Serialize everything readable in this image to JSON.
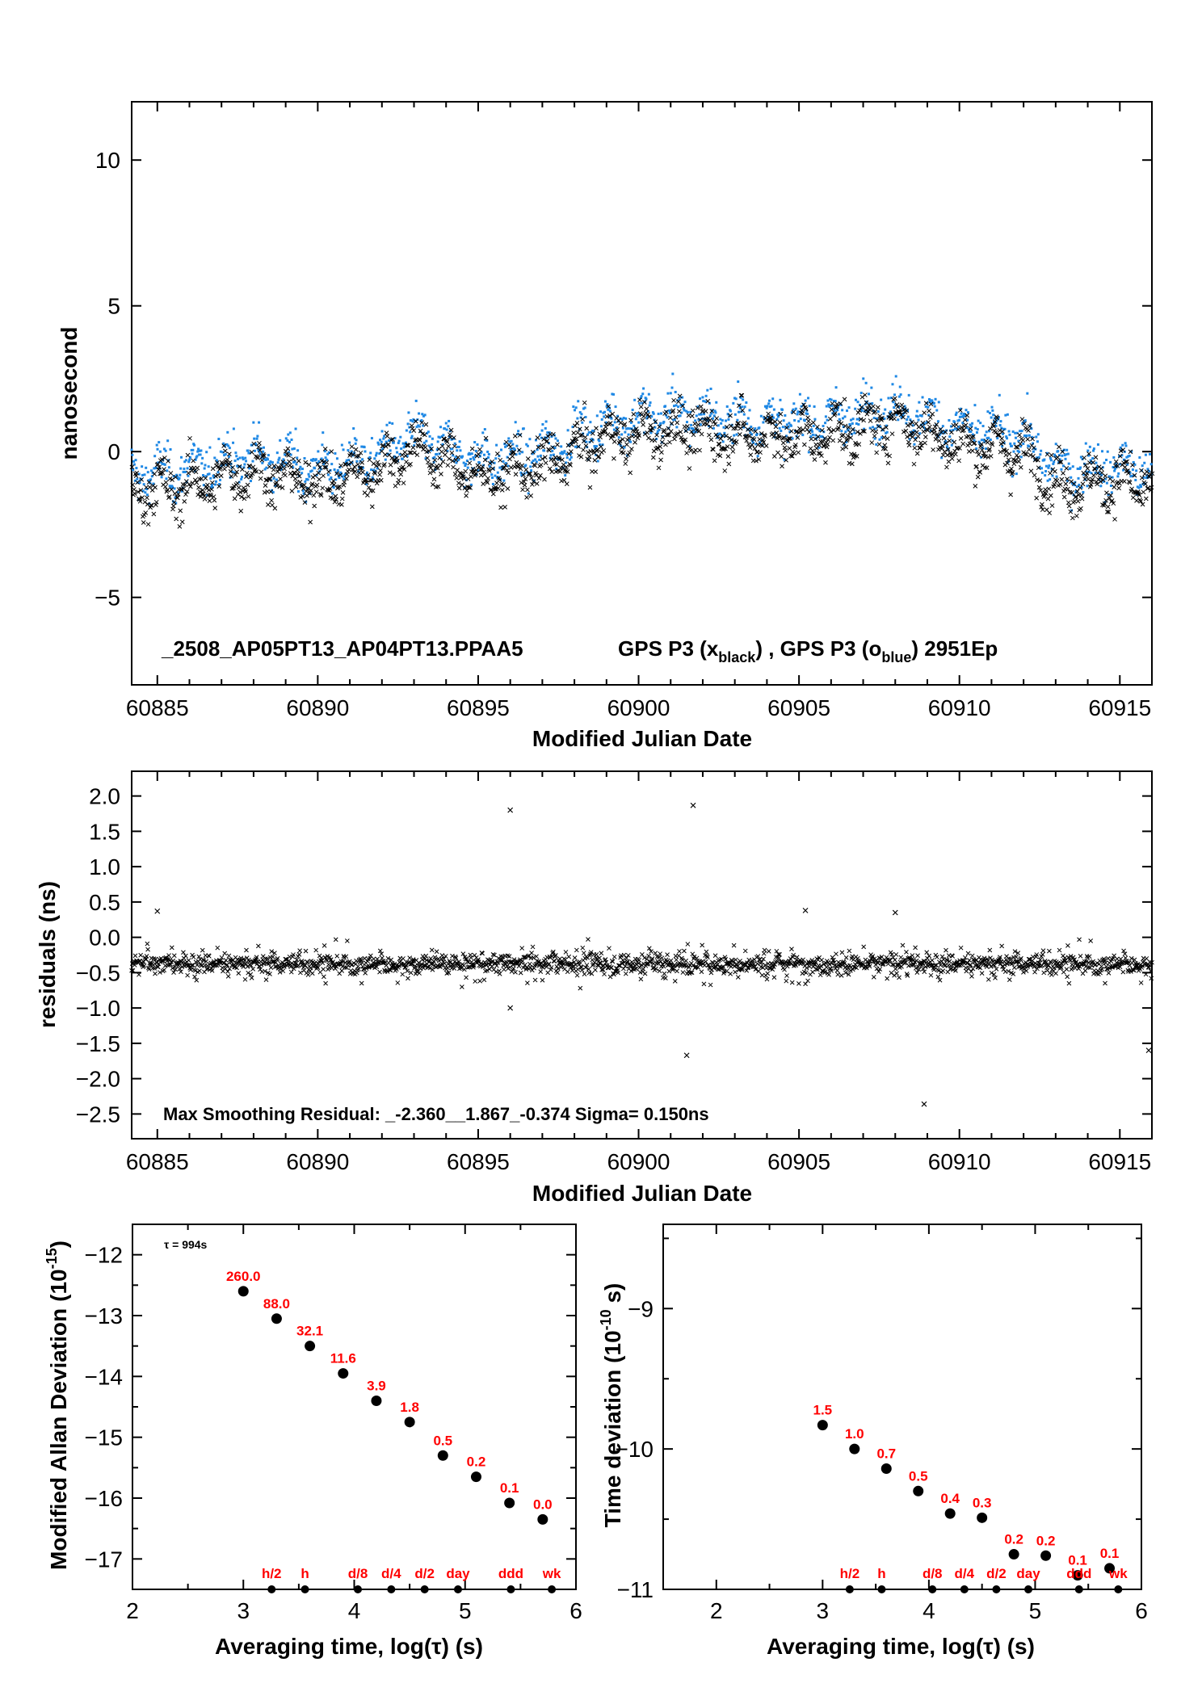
{
  "chart_data": [
    {
      "type": "scatter",
      "panel": "phase",
      "title": "_2508_AP05PT13_AP04PT13.PPAA5",
      "legend_parts": [
        "GPS P3 (x",
        "black",
        ") ,  GPS P3 (o",
        "blue",
        ")  2951Ep"
      ],
      "xlabel": "Modified Julian Date",
      "ylabel": "nanosecond",
      "xlim": [
        60884.2,
        60916.0
      ],
      "ylim": [
        -8,
        12
      ],
      "xticks": [
        60885,
        60890,
        60895,
        60900,
        60905,
        60910,
        60915
      ],
      "yticks": [
        -5,
        0,
        5,
        10
      ],
      "ytick_labels": [
        "−5",
        "0",
        "5",
        "10"
      ],
      "series": [
        {
          "marker": "x",
          "color": "#000000",
          "trend": [
            [
              60884.2,
              -1.3
            ],
            [
              60886,
              -1.2
            ],
            [
              60888,
              -0.6
            ],
            [
              60890,
              -1.1
            ],
            [
              60892,
              -0.5
            ],
            [
              60893,
              0.2
            ],
            [
              60895,
              -0.8
            ],
            [
              60897,
              -0.5
            ],
            [
              60899,
              0.5
            ],
            [
              60901,
              0.8
            ],
            [
              60903,
              0.6
            ],
            [
              60905,
              0.5
            ],
            [
              60907,
              0.8
            ],
            [
              60908,
              1.1
            ],
            [
              60910,
              0.3
            ],
            [
              60912,
              0.0
            ],
            [
              60913,
              -1.1
            ],
            [
              60915,
              -1.0
            ],
            [
              60916,
              -1.2
            ]
          ]
        },
        {
          "marker": "o",
          "color": "#1e88e5",
          "trend": [
            [
              60884.2,
              -0.8
            ],
            [
              60886,
              -0.6
            ],
            [
              60888,
              -0.1
            ],
            [
              60890,
              -0.6
            ],
            [
              60892,
              -0.1
            ],
            [
              60893,
              0.6
            ],
            [
              60895,
              -0.3
            ],
            [
              60897,
              0.0
            ],
            [
              60899,
              1.0
            ],
            [
              60901,
              1.3
            ],
            [
              60903,
              1.1
            ],
            [
              60905,
              1.0
            ],
            [
              60907,
              1.3
            ],
            [
              60908,
              1.5
            ],
            [
              60910,
              0.8
            ],
            [
              60912,
              0.5
            ],
            [
              60913,
              -0.6
            ],
            [
              60915,
              -0.5
            ],
            [
              60916,
              -0.7
            ]
          ]
        }
      ]
    },
    {
      "type": "scatter",
      "panel": "residuals",
      "xlabel": "Modified Julian Date",
      "ylabel": "residuals (ns)",
      "annotation": "Max Smoothing Residual: _-2.360__1.867_-0.374  Sigma= 0.150ns",
      "xlim": [
        60884.2,
        60916.0
      ],
      "ylim": [
        -2.85,
        2.35
      ],
      "xticks": [
        60885,
        60890,
        60895,
        60900,
        60905,
        60910,
        60915
      ],
      "yticks": [
        -2.5,
        -2.0,
        -1.5,
        -1.0,
        -0.5,
        0.0,
        0.5,
        1.0,
        1.5,
        2.0
      ],
      "ytick_labels": [
        "−2.5",
        "−2.0",
        "−1.5",
        "−1.0",
        "−0.5",
        "0.0",
        "0.5",
        "1.0",
        "1.5",
        "2.0"
      ],
      "center": -0.374,
      "outliers": [
        [
          60896.0,
          1.8
        ],
        [
          60901.7,
          1.867
        ],
        [
          60901.5,
          -1.67
        ],
        [
          60908.9,
          -2.36
        ],
        [
          60915.9,
          -1.6
        ],
        [
          60885.0,
          0.37
        ],
        [
          60905.2,
          0.38
        ],
        [
          60908.0,
          0.35
        ],
        [
          60896.0,
          -1.0
        ]
      ]
    },
    {
      "type": "scatter",
      "panel": "mdev",
      "xlabel": "Averaging time, log(τ) (s)",
      "ylabel": "Modified Allan Deviation",
      "ylabel_exp": "(10",
      "ylabel_sup": "-15",
      "ylabel_close": ")",
      "tau_note": "τ = 994s",
      "xlim": [
        2,
        6
      ],
      "ylim": [
        -17.5,
        -11.5
      ],
      "xticks": [
        2,
        3,
        4,
        5,
        6
      ],
      "xtick_labels": [
        "2",
        "3",
        "4",
        "5",
        "6"
      ],
      "yticks": [
        -17,
        -16,
        -15,
        -14,
        -13,
        -12
      ],
      "ytick_labels": [
        "−17",
        "−16",
        "−15",
        "−14",
        "−13",
        "−12"
      ],
      "points": [
        {
          "x": 3.0,
          "y": -12.6,
          "label": "260.0"
        },
        {
          "x": 3.3,
          "y": -13.05,
          "label": "88.0"
        },
        {
          "x": 3.6,
          "y": -13.5,
          "label": "32.1"
        },
        {
          "x": 3.9,
          "y": -13.95,
          "label": "11.6"
        },
        {
          "x": 4.2,
          "y": -14.4,
          "label": "3.9"
        },
        {
          "x": 4.5,
          "y": -14.75,
          "label": "1.8"
        },
        {
          "x": 4.8,
          "y": -15.3,
          "label": "0.5"
        },
        {
          "x": 5.1,
          "y": -15.65,
          "label": "0.2"
        },
        {
          "x": 5.4,
          "y": -16.08,
          "label": "0.1"
        },
        {
          "x": 5.7,
          "y": -16.35,
          "label": "0.0"
        }
      ],
      "markers": [
        {
          "x": 3.255,
          "label": "h/2"
        },
        {
          "x": 3.556,
          "label": "h"
        },
        {
          "x": 4.033,
          "label": "d/8"
        },
        {
          "x": 4.334,
          "label": "d/4"
        },
        {
          "x": 4.635,
          "label": "d/2"
        },
        {
          "x": 4.936,
          "label": "day"
        },
        {
          "x": 5.413,
          "label": "ddd"
        },
        {
          "x": 5.782,
          "label": "wk"
        }
      ]
    },
    {
      "type": "scatter",
      "panel": "tdev",
      "xlabel": "Averaging time, log(τ) (s)",
      "ylabel": "Time deviation",
      "ylabel_exp": "(10",
      "ylabel_sup": "-10",
      "ylabel_close": " s)",
      "xlim": [
        1.5,
        6
      ],
      "ylim": [
        -11,
        -8.4
      ],
      "xticks": [
        2,
        3,
        4,
        5,
        6
      ],
      "xtick_labels": [
        "2",
        "3",
        "4",
        "5",
        "6"
      ],
      "yticks": [
        -11,
        -10,
        -9
      ],
      "ytick_labels": [
        "−11",
        "−10",
        "−9"
      ],
      "points": [
        {
          "x": 3.0,
          "y": -9.83,
          "label": "1.5"
        },
        {
          "x": 3.3,
          "y": -10.0,
          "label": "1.0"
        },
        {
          "x": 3.6,
          "y": -10.14,
          "label": "0.7"
        },
        {
          "x": 3.9,
          "y": -10.3,
          "label": "0.5"
        },
        {
          "x": 4.2,
          "y": -10.46,
          "label": "0.4"
        },
        {
          "x": 4.5,
          "y": -10.49,
          "label": "0.3"
        },
        {
          "x": 4.8,
          "y": -10.75,
          "label": "0.2"
        },
        {
          "x": 5.1,
          "y": -10.76,
          "label": "0.2"
        },
        {
          "x": 5.4,
          "y": -10.9,
          "label": "0.1"
        },
        {
          "x": 5.7,
          "y": -10.85,
          "label": "0.1"
        }
      ],
      "markers": [
        {
          "x": 3.255,
          "label": "h/2"
        },
        {
          "x": 3.556,
          "label": "h"
        },
        {
          "x": 4.033,
          "label": "d/8"
        },
        {
          "x": 4.334,
          "label": "d/4"
        },
        {
          "x": 4.635,
          "label": "d/2"
        },
        {
          "x": 4.936,
          "label": "day"
        },
        {
          "x": 5.413,
          "label": "ddd"
        },
        {
          "x": 5.782,
          "label": "wk"
        }
      ]
    }
  ]
}
